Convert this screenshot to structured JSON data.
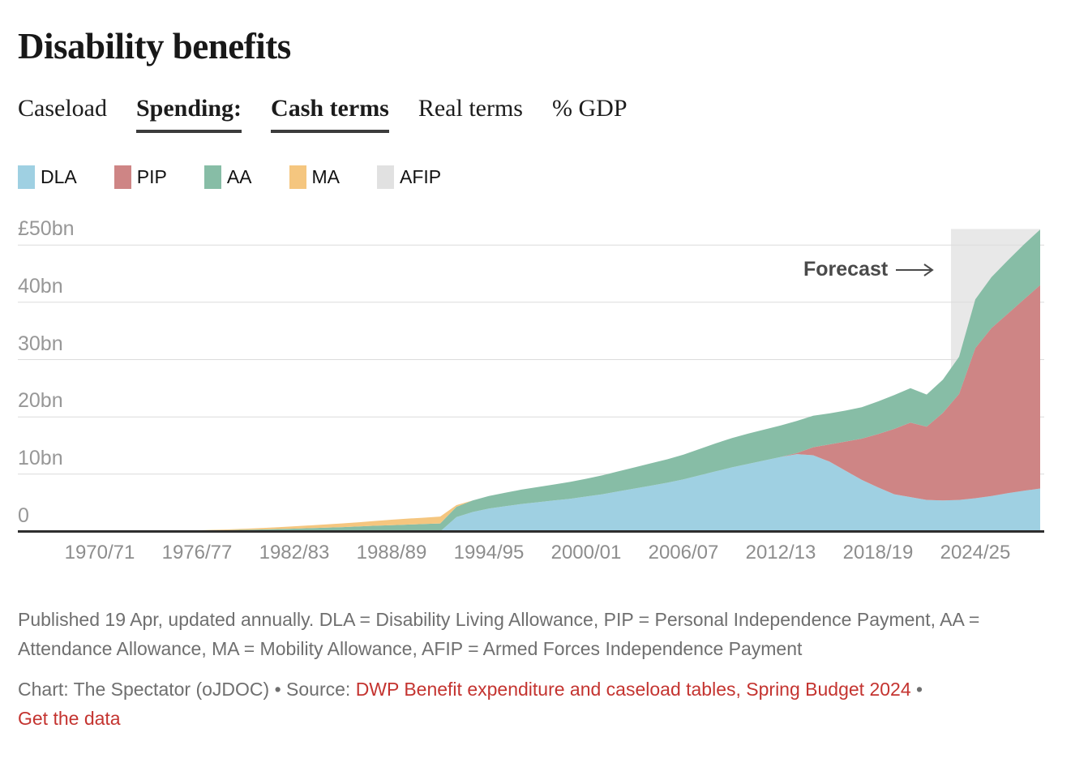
{
  "header": {
    "title": "Disability benefits"
  },
  "tabs": [
    {
      "label": "Caseload",
      "selected": false
    },
    {
      "label": "Spending:",
      "selected": true
    },
    {
      "label": "Cash terms",
      "selected": true
    },
    {
      "label": "Real terms",
      "selected": false
    },
    {
      "label": "% GDP",
      "selected": false
    }
  ],
  "chart_data": {
    "type": "area",
    "stacked": true,
    "title": "Disability benefits",
    "grid": true,
    "legend_position": "top-left",
    "ylim": [
      0,
      52.8
    ],
    "ytick_labels": [
      "£50bn",
      "40bn",
      "30bn",
      "20bn",
      "10bn",
      "0"
    ],
    "ytick_values": [
      50,
      40,
      30,
      20,
      10,
      0
    ],
    "xtick_labels": [
      "1970/71",
      "1976/77",
      "1982/83",
      "1988/89",
      "1994/95",
      "2000/01",
      "2006/07",
      "2012/13",
      "2018/19",
      "2024/25"
    ],
    "forecast": {
      "label": "Forecast",
      "start_x": "2023/24",
      "band_color": "#e8e8e8"
    },
    "x": [
      "1970/71",
      "1971/72",
      "1972/73",
      "1973/74",
      "1974/75",
      "1975/76",
      "1976/77",
      "1977/78",
      "1978/79",
      "1979/80",
      "1980/81",
      "1981/82",
      "1982/83",
      "1983/84",
      "1984/85",
      "1985/86",
      "1986/87",
      "1987/88",
      "1988/89",
      "1989/90",
      "1990/91",
      "1991/92",
      "1992/93",
      "1993/94",
      "1994/95",
      "1995/96",
      "1996/97",
      "1997/98",
      "1998/99",
      "1999/00",
      "2000/01",
      "2001/02",
      "2002/03",
      "2003/04",
      "2004/05",
      "2005/06",
      "2006/07",
      "2007/08",
      "2008/09",
      "2009/10",
      "2010/11",
      "2011/12",
      "2012/13",
      "2013/14",
      "2014/15",
      "2015/16",
      "2016/17",
      "2017/18",
      "2018/19",
      "2019/20",
      "2020/21",
      "2021/22",
      "2022/23",
      "2023/24",
      "2024/25",
      "2025/26",
      "2026/27",
      "2027/28",
      "2028/29"
    ],
    "series": [
      {
        "name": "DLA",
        "color": "#9fd0e2",
        "values": [
          0,
          0,
          0,
          0,
          0,
          0,
          0,
          0,
          0,
          0,
          0,
          0,
          0,
          0,
          0,
          0,
          0,
          0,
          0,
          0,
          0,
          0,
          2.5,
          3.4,
          4.0,
          4.4,
          4.8,
          5.1,
          5.4,
          5.7,
          6.1,
          6.5,
          7.0,
          7.5,
          8.0,
          8.5,
          9.1,
          9.8,
          10.5,
          11.2,
          11.8,
          12.4,
          13.0,
          13.5,
          13.3,
          12.2,
          10.6,
          9.0,
          7.7,
          6.5,
          6.0,
          5.5,
          5.4,
          5.5,
          5.8,
          6.2,
          6.7,
          7.1,
          7.5
        ]
      },
      {
        "name": "PIP",
        "color": "#ce8585",
        "values": [
          0,
          0,
          0,
          0,
          0,
          0,
          0,
          0,
          0,
          0,
          0,
          0,
          0,
          0,
          0,
          0,
          0,
          0,
          0,
          0,
          0,
          0,
          0,
          0,
          0,
          0,
          0,
          0,
          0,
          0,
          0,
          0,
          0,
          0,
          0,
          0,
          0,
          0,
          0,
          0,
          0,
          0,
          0,
          0.2,
          1.4,
          3.0,
          5.1,
          7.2,
          9.3,
          11.4,
          13.0,
          12.8,
          15.3,
          18.5,
          26.2,
          29.3,
          31.3,
          33.4,
          35.5
        ]
      },
      {
        "name": "AA",
        "color": "#87bda6",
        "values": [
          0,
          0.02,
          0.05,
          0.08,
          0.11,
          0.14,
          0.17,
          0.21,
          0.25,
          0.3,
          0.36,
          0.43,
          0.5,
          0.58,
          0.67,
          0.77,
          0.88,
          1.0,
          1.1,
          1.2,
          1.3,
          1.4,
          1.8,
          2.0,
          2.2,
          2.35,
          2.5,
          2.65,
          2.8,
          2.95,
          3.1,
          3.3,
          3.5,
          3.7,
          3.9,
          4.1,
          4.3,
          4.6,
          4.9,
          5.1,
          5.3,
          5.4,
          5.5,
          5.6,
          5.5,
          5.4,
          5.4,
          5.5,
          5.7,
          5.9,
          6.0,
          5.6,
          5.8,
          6.5,
          8.5,
          8.9,
          9.3,
          9.6,
          9.7
        ]
      },
      {
        "name": "MA",
        "color": "#f5c67f",
        "values": [
          0,
          0,
          0,
          0,
          0,
          0,
          0.03,
          0.07,
          0.12,
          0.18,
          0.25,
          0.32,
          0.4,
          0.48,
          0.56,
          0.65,
          0.74,
          0.84,
          0.95,
          1.05,
          1.1,
          1.2,
          0.3,
          0,
          0,
          0,
          0,
          0,
          0,
          0,
          0,
          0,
          0,
          0,
          0,
          0,
          0,
          0,
          0,
          0,
          0,
          0,
          0,
          0,
          0,
          0,
          0,
          0,
          0,
          0,
          0,
          0,
          0,
          0,
          0,
          0,
          0,
          0,
          0
        ]
      },
      {
        "name": "AFIP",
        "color": "#e1e1e1",
        "values": [
          0,
          0,
          0,
          0,
          0,
          0,
          0,
          0,
          0,
          0,
          0,
          0,
          0,
          0,
          0,
          0,
          0,
          0,
          0,
          0,
          0,
          0,
          0,
          0,
          0,
          0,
          0,
          0,
          0,
          0,
          0,
          0,
          0,
          0,
          0,
          0,
          0,
          0,
          0,
          0,
          0,
          0,
          0,
          0,
          0,
          0,
          0,
          0,
          0,
          0,
          0,
          0,
          0,
          0,
          0,
          0,
          0,
          0,
          0
        ]
      }
    ]
  },
  "footer": {
    "notes": "Published 19 Apr, updated annually. DLA = Disability Living Allowance, PIP = Personal Independence Payment, AA = Attendance Allowance, MA = Mobility Allowance, AFIP = Armed Forces Independence Payment",
    "byline_prefix": "Chart: The Spectator (oJDOC) • Source: ",
    "source_link": "DWP Benefit expenditure and caseload tables, Spring Budget 2024",
    "separator": " • ",
    "data_link": "Get the data",
    "link_color": "#c43430"
  }
}
